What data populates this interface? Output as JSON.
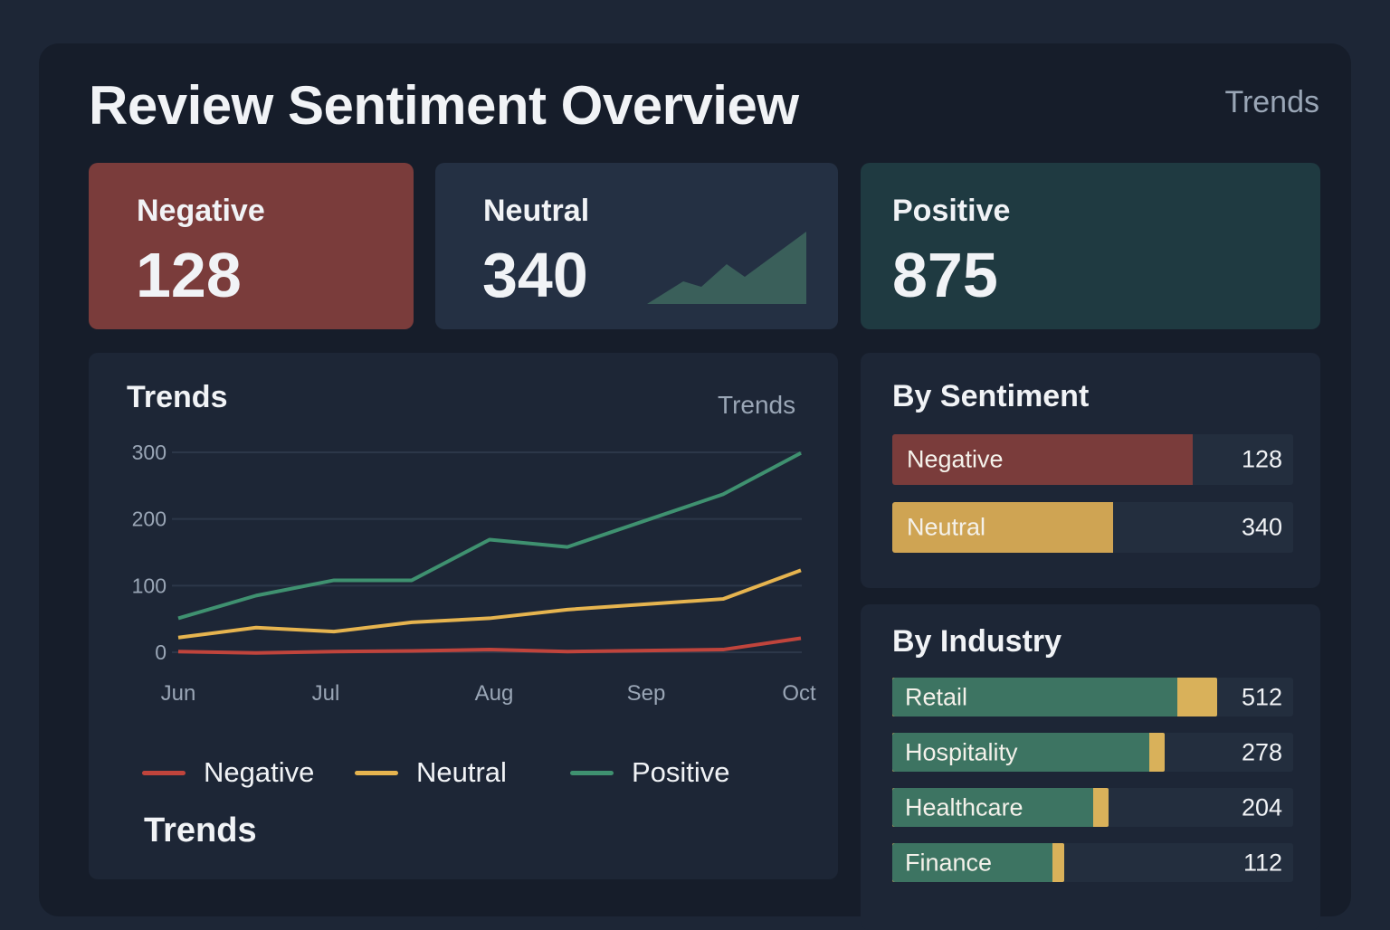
{
  "header": {
    "title": "Review Sentiment Overview",
    "link": "Trends"
  },
  "kpis": [
    {
      "label": "Negative",
      "value": "128",
      "color": "#7a3c3b"
    },
    {
      "label": "Neutral",
      "value": "340",
      "color": "#243043"
    },
    {
      "label": "Positive",
      "value": "875",
      "color": "#1f3a41"
    }
  ],
  "sparkline": {
    "color": "#3a5f5a",
    "values": [
      0,
      3,
      2,
      5,
      3,
      8
    ]
  },
  "trends": {
    "title": "Trends",
    "link": "Trends",
    "footer": "Trends"
  },
  "chart_data": {
    "type": "line",
    "x_ticks": [
      "Jun",
      "Jul",
      "Aug",
      "Sep",
      "Oct"
    ],
    "x": [
      0,
      0.5,
      1,
      1.5,
      2,
      2.5,
      3.5,
      4
    ],
    "y_ticks": [
      "0",
      "100",
      "200",
      "300"
    ],
    "ylim": [
      0,
      300
    ],
    "grid": true,
    "legend_position": "bottom",
    "series": [
      {
        "name": "Negative",
        "color": "#c0443c",
        "values": [
          1,
          -1,
          1,
          2,
          4,
          1,
          4,
          21
        ]
      },
      {
        "name": "Neutral",
        "color": "#e6b44f",
        "values": [
          22,
          37,
          31,
          45,
          51,
          64,
          80,
          123
        ]
      },
      {
        "name": "Positive",
        "color": "#3f9170",
        "values": [
          51,
          85,
          108,
          108,
          169,
          158,
          237,
          299
        ]
      }
    ]
  },
  "by_sentiment": {
    "title": "By Sentiment",
    "items": [
      {
        "label": "Negative",
        "value": "128",
        "fraction": 0.75,
        "color": "#7a3c3b"
      },
      {
        "label": "Neutral",
        "value": "340",
        "fraction": 0.55,
        "color": "#cfa453"
      }
    ]
  },
  "by_industry": {
    "title": "By Industry",
    "green": "#3d7462",
    "gold": "#d9b15a",
    "items": [
      {
        "label": "Retail",
        "value": "512",
        "green_fraction": 0.71,
        "total_fraction": 0.81
      },
      {
        "label": "Hospitality",
        "value": "278",
        "green_fraction": 0.64,
        "total_fraction": 0.68
      },
      {
        "label": "Healthcare",
        "value": "204",
        "green_fraction": 0.5,
        "total_fraction": 0.54
      },
      {
        "label": "Finance",
        "value": "112",
        "green_fraction": 0.4,
        "total_fraction": 0.43
      }
    ]
  }
}
